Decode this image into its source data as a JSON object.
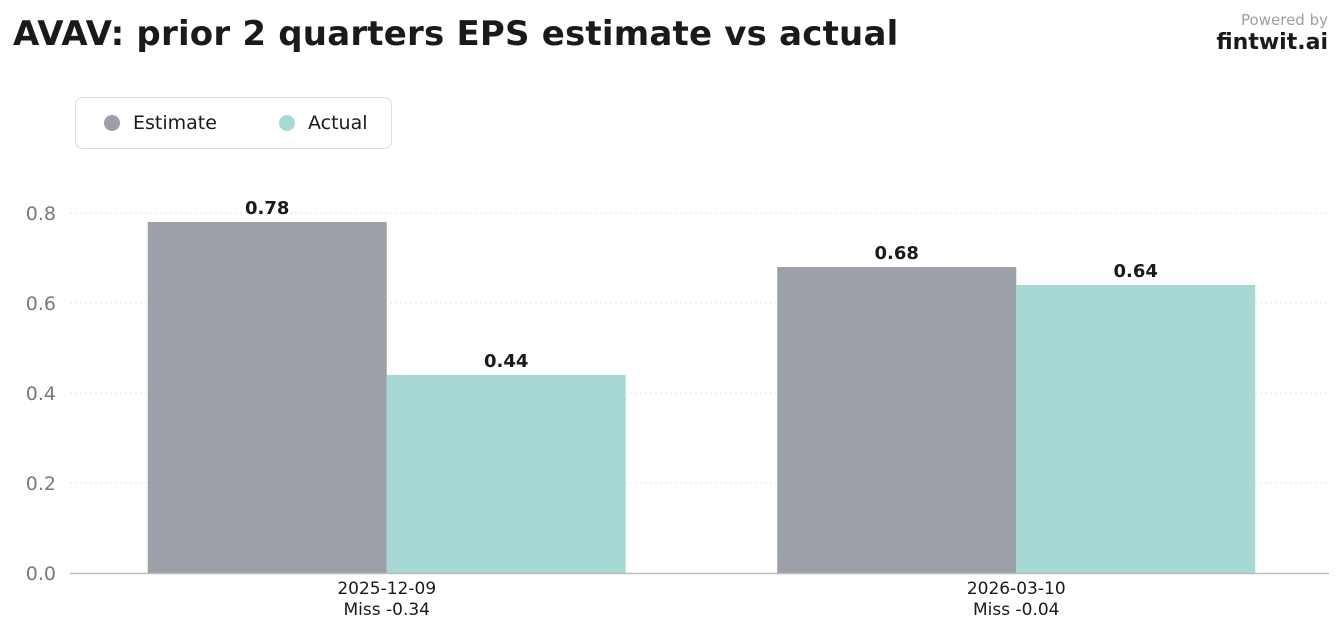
{
  "header": {
    "title": "AVAV: prior 2 quarters EPS estimate vs actual",
    "powered_by": "Powered by",
    "brand": "fintwit.ai"
  },
  "legend": {
    "items": [
      {
        "label": "Estimate",
        "color": "#9ca0a8"
      },
      {
        "label": "Actual",
        "color": "#a8d8d4"
      }
    ]
  },
  "chart_data": {
    "type": "bar",
    "title": "AVAV: prior 2 quarters EPS estimate vs actual",
    "categories": [
      "2025-12-09",
      "2026-03-10"
    ],
    "category_sublabels": [
      "Miss -0.34",
      "Miss -0.04"
    ],
    "series": [
      {
        "name": "Estimate",
        "values": [
          0.78,
          0.68
        ],
        "color": "#9ca0a8"
      },
      {
        "name": "Actual",
        "values": [
          0.44,
          0.64
        ],
        "color": "#a8d8d4"
      }
    ],
    "value_labels": [
      [
        "0.78",
        "0.68"
      ],
      [
        "0.44",
        "0.64"
      ]
    ],
    "yticks": [
      "0.0",
      "0.2",
      "0.4",
      "0.6",
      "0.8"
    ],
    "ylim": [
      0,
      0.8
    ],
    "xlabel": "",
    "ylabel": "",
    "grid": true,
    "legend_position": "top-left"
  }
}
